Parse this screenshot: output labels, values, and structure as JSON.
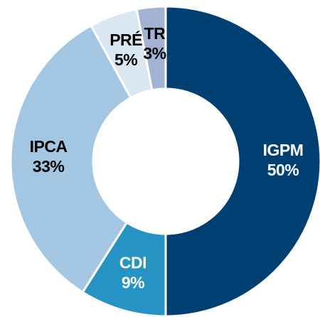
{
  "chart_data": {
    "type": "donut",
    "categories": [
      "IGPM",
      "CDI",
      "IPCA",
      "PRÉ",
      "TR"
    ],
    "values": [
      50,
      9,
      33,
      5,
      3
    ],
    "value_labels": [
      "50%",
      "9%",
      "33%",
      "5%",
      "3%"
    ],
    "colors": [
      "#003f72",
      "#2594c4",
      "#a3c7e2",
      "#d9e7f3",
      "#a2b2d2"
    ]
  }
}
